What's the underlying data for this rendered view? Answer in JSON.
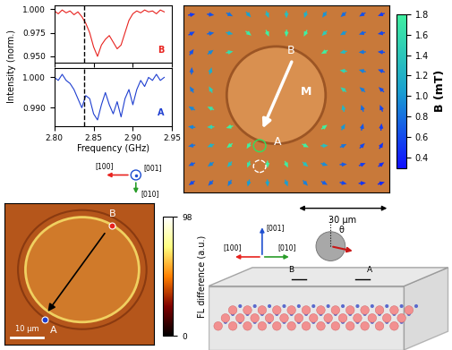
{
  "chart_data": {
    "type": "line",
    "xlabel": "Frequency (GHz)",
    "ylabel": "Intensity (norm.)",
    "xlim": [
      2.8,
      2.95
    ],
    "xticks": [
      {
        "value": 2.8,
        "label": "2.80"
      },
      {
        "value": 2.85,
        "label": "2.85"
      },
      {
        "value": 2.9,
        "label": "2.90"
      },
      {
        "value": 2.95,
        "label": "2.95"
      }
    ],
    "vline_x": 2.838,
    "line_style": "dashed",
    "x": [
      2.8,
      2.805,
      2.81,
      2.815,
      2.82,
      2.825,
      2.83,
      2.835,
      2.84,
      2.845,
      2.85,
      2.855,
      2.86,
      2.865,
      2.87,
      2.875,
      2.88,
      2.885,
      2.89,
      2.895,
      2.9,
      2.905,
      2.91,
      2.915,
      2.92,
      2.925,
      2.93,
      2.935,
      2.94
    ],
    "panels": [
      {
        "tick_labels": "y",
        "ylim": [
          0.943,
          1.004
        ],
        "yticks": [
          {
            "value": 0.95,
            "label": "0.950"
          },
          {
            "value": 0.975,
            "label": "0.975"
          },
          {
            "value": 1.0,
            "label": "1.000"
          }
        ],
        "series": [
          {
            "name": "B",
            "color": "#e8231f",
            "values": [
              0.998,
              0.995,
              0.999,
              0.996,
              0.998,
              0.994,
              0.997,
              0.992,
              0.985,
              0.975,
              0.96,
              0.95,
              0.962,
              0.968,
              0.972,
              0.965,
              0.958,
              0.962,
              0.975,
              0.988,
              0.995,
              0.998,
              0.996,
              0.999,
              0.997,
              0.998,
              0.995,
              0.999,
              0.997
            ]
          }
        ]
      },
      {
        "ylim": [
          0.984,
          1.003
        ],
        "yticks": [
          {
            "value": 0.99,
            "label": "0.990"
          },
          {
            "value": 1.0,
            "label": "1.000"
          }
        ],
        "series": [
          {
            "name": "A",
            "color": "#1f3fd0",
            "values": [
              1.0,
              0.999,
              1.001,
              0.999,
              0.998,
              0.996,
              0.993,
              0.99,
              0.994,
              0.993,
              0.988,
              0.986,
              0.991,
              0.995,
              0.991,
              0.988,
              0.992,
              0.987,
              0.993,
              0.996,
              0.991,
              0.996,
              0.999,
              0.997,
              1.0,
              0.999,
              1.001,
              0.999,
              1.0
            ]
          }
        ]
      }
    ]
  },
  "field_map": {
    "point_labels": [
      "B",
      "A"
    ],
    "arrow_label": "M",
    "scale_bar": "30 µm",
    "colorbar": {
      "label": "B (mT)",
      "lim": [
        0.3,
        1.8
      ],
      "ticks": [
        0.4,
        0.6,
        0.8,
        1.0,
        1.2,
        1.4,
        1.6,
        1.8
      ]
    }
  },
  "compass": {
    "axes": [
      {
        "label": "[001]",
        "color": "#1f4fd0"
      },
      {
        "label": "[100]",
        "color": "#e8231f"
      },
      {
        "label": "[010]",
        "color": "#2a9d2a"
      }
    ]
  },
  "fl_map": {
    "point_labels": [
      "B",
      "A"
    ],
    "point_colors": [
      "#e8231f",
      "#1f3fd0"
    ],
    "scale_bar": "10 µm",
    "colorbar": {
      "label": "FL difference (a.u.)",
      "lim": [
        0,
        98
      ],
      "ticks": [
        0,
        98
      ]
    }
  },
  "schematic": {
    "axes": [
      {
        "label": "[001]",
        "color": "#1f4fd0"
      },
      {
        "label": "[100]",
        "color": "#e8231f"
      },
      {
        "label": "[010]",
        "color": "#2a9d2a"
      }
    ],
    "point_labels": [
      "B",
      "A"
    ],
    "angle_label": "θ"
  }
}
